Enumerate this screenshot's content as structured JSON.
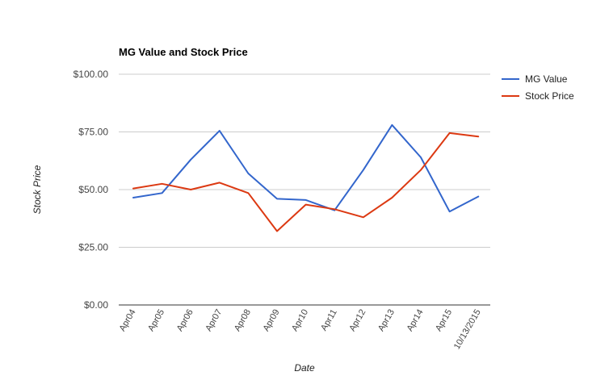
{
  "chart_data": {
    "type": "line",
    "title": "MG Value and Stock Price",
    "xlabel": "Date",
    "ylabel": "Stock Price",
    "categories": [
      "Apr04",
      "Apr05",
      "Apr06",
      "Apr07",
      "Apr08",
      "Apr09",
      "Apr10",
      "Apr11",
      "Apr12",
      "Apr13",
      "Apr14",
      "Apr15",
      "10/13/2015"
    ],
    "ylim": [
      0,
      100
    ],
    "yticks": [
      {
        "value": 0,
        "label": "$0.00"
      },
      {
        "value": 25,
        "label": "$25.00"
      },
      {
        "value": 50,
        "label": "$50.00"
      },
      {
        "value": 75,
        "label": "$75.00"
      },
      {
        "value": 100,
        "label": "$100.00"
      }
    ],
    "grid": true,
    "legend_position": "right",
    "series": [
      {
        "name": "MG Value",
        "color": "#3366cc",
        "values": [
          46.5,
          48.5,
          63,
          75.5,
          57,
          46,
          45.5,
          41,
          58.5,
          78,
          64,
          40.5,
          47
        ]
      },
      {
        "name": "Stock Price",
        "color": "#dc3912",
        "values": [
          50.5,
          52.5,
          50,
          53,
          48.5,
          32,
          43.5,
          41.5,
          38,
          46.5,
          58.5,
          74.5,
          73
        ]
      }
    ]
  }
}
